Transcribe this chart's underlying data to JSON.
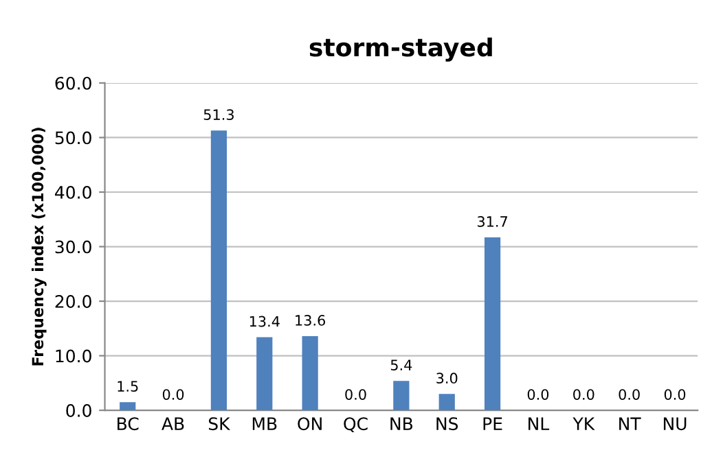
{
  "chart_data": {
    "type": "bar",
    "title": "storm-stayed",
    "ylabel": "Frequency index (x100,000)",
    "categories": [
      "BC",
      "AB",
      "SK",
      "MB",
      "ON",
      "QC",
      "NB",
      "NS",
      "PE",
      "NL",
      "YK",
      "NT",
      "NU"
    ],
    "values": [
      1.5,
      0.0,
      51.3,
      13.4,
      13.6,
      0.0,
      5.4,
      3.0,
      31.7,
      0.0,
      0.0,
      0.0,
      0.0
    ],
    "value_labels": [
      "1.5",
      "0.0",
      "51.3",
      "13.4",
      "13.6",
      "0.0",
      "5.4",
      "3.0",
      "31.7",
      "0.0",
      "0.0",
      "0.0",
      "0.0"
    ],
    "color": "#4f81bd",
    "ylim": [
      0,
      60
    ],
    "yticks": [
      {
        "value": 0,
        "label": "0.0"
      },
      {
        "value": 10,
        "label": "10.0"
      },
      {
        "value": 20,
        "label": "20.0"
      },
      {
        "value": 30,
        "label": "30.0"
      },
      {
        "value": 40,
        "label": "40.0"
      },
      {
        "value": 50,
        "label": "50.0"
      },
      {
        "value": 60,
        "label": "60.0"
      }
    ],
    "grid": "y"
  }
}
